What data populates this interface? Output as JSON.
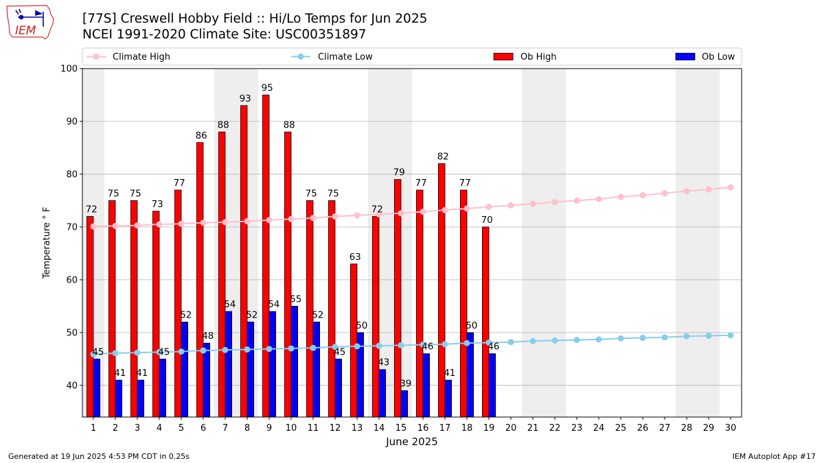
{
  "logo": {
    "text": "IEM"
  },
  "header": {
    "title_line1": "[77S] Creswell Hobby Field :: Hi/Lo Temps for Jun 2025",
    "title_line2": "NCEI 1991-2020 Climate Site: USC00351897"
  },
  "footer": {
    "left": "Generated at 19 Jun 2025 4:53 PM CDT in 0.25s",
    "right": "IEM Autoplot App #17"
  },
  "colors": {
    "ob_high": "#ff0000",
    "ob_low": "#0000ff",
    "climate_high": "#ffc0cb",
    "climate_low": "#87ceeb",
    "weekend_band": "#eeeeee",
    "grid": "#b0b0b0"
  },
  "chart_data": {
    "type": "bar",
    "title": "[77S] Creswell Hobby Field :: Hi/Lo Temps for Jun 2025",
    "subtitle": "NCEI 1991-2020 Climate Site: USC00351897",
    "xlabel": "June 2025",
    "ylabel": "Temperature ° F",
    "ylim": [
      34,
      100
    ],
    "yticks": [
      40,
      50,
      60,
      70,
      80,
      90,
      100
    ],
    "grid": true,
    "legend_placement": "top",
    "days": [
      1,
      2,
      3,
      4,
      5,
      6,
      7,
      8,
      9,
      10,
      11,
      12,
      13,
      14,
      15,
      16,
      17,
      18,
      19,
      20,
      21,
      22,
      23,
      24,
      25,
      26,
      27,
      28,
      29,
      30
    ],
    "weekend_days": [
      1,
      7,
      8,
      14,
      15,
      21,
      22,
      28,
      29
    ],
    "series": [
      {
        "name": "Climate High",
        "kind": "line",
        "values": [
          70.1,
          70.2,
          70.3,
          70.5,
          70.6,
          70.8,
          70.9,
          71.1,
          71.3,
          71.5,
          71.7,
          72.0,
          72.2,
          72.4,
          72.6,
          72.9,
          73.2,
          73.5,
          73.8,
          74.1,
          74.4,
          74.7,
          75.0,
          75.3,
          75.7,
          76.0,
          76.4,
          76.8,
          77.1,
          77.5
        ]
      },
      {
        "name": "Climate Low",
        "kind": "line",
        "values": [
          45.9,
          46.1,
          46.2,
          46.3,
          46.4,
          46.6,
          46.7,
          46.8,
          46.9,
          47.0,
          47.1,
          47.3,
          47.4,
          47.5,
          47.6,
          47.7,
          47.8,
          48.0,
          48.1,
          48.2,
          48.4,
          48.5,
          48.6,
          48.7,
          48.9,
          49.0,
          49.1,
          49.3,
          49.4,
          49.5
        ]
      },
      {
        "name": "Ob High",
        "kind": "bar",
        "values": [
          72,
          75,
          75,
          73,
          77,
          86,
          88,
          93,
          95,
          88,
          75,
          75,
          63,
          72,
          79,
          77,
          82,
          77,
          70
        ]
      },
      {
        "name": "Ob Low",
        "kind": "bar",
        "values": [
          45,
          41,
          41,
          45,
          52,
          48,
          54,
          52,
          54,
          55,
          52,
          45,
          50,
          43,
          39,
          46,
          41,
          50,
          46
        ]
      }
    ]
  }
}
